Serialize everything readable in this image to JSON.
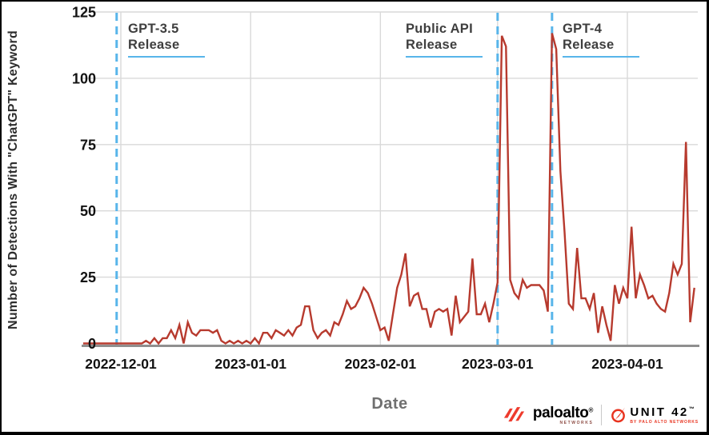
{
  "chart_data": {
    "type": "line",
    "title": "",
    "xlabel": "Date",
    "ylabel": "Number of Detections With \"ChatGPT\" Keyword",
    "x_tick_labels": [
      "2022-12-01",
      "2023-01-01",
      "2023-02-01",
      "2023-03-01",
      "2023-04-01"
    ],
    "y_tick_labels": [
      0,
      25,
      50,
      75,
      100,
      125
    ],
    "ylim": [
      0,
      125
    ],
    "grid": true,
    "legend": "none",
    "line_color": "#b73a2e",
    "grid_color": "#d9d9d9",
    "event_line_color": "#58b5ea",
    "events": [
      {
        "date": "2022-11-30",
        "label1": "GPT-3.5",
        "label2": "Release"
      },
      {
        "date": "2023-03-01",
        "label1": "Public API",
        "label2": "Release"
      },
      {
        "date": "2023-03-14",
        "label1": "GPT-4",
        "label2": "Release"
      }
    ],
    "series": [
      {
        "name": "Detections with ChatGPT keyword",
        "frequency": "daily",
        "start_date": "2022-11-22",
        "values": [
          0,
          0,
          0,
          0,
          0,
          0,
          0,
          0,
          0,
          0,
          0,
          0,
          0,
          0,
          0,
          1,
          0,
          2,
          0,
          2,
          2,
          5,
          2,
          7,
          0,
          8,
          4,
          3,
          5,
          5,
          5,
          4,
          5,
          1,
          0,
          1,
          0,
          1,
          0,
          1,
          0,
          2,
          0,
          4,
          4,
          2,
          5,
          4,
          3,
          5,
          3,
          6,
          7,
          14,
          14,
          5,
          2,
          4,
          5,
          3,
          8,
          7,
          11,
          16,
          13,
          14,
          17,
          21,
          19,
          15,
          10,
          5,
          6,
          1,
          11,
          21,
          26,
          34,
          14,
          18,
          19,
          13,
          13,
          6,
          12,
          13,
          12,
          13,
          3,
          18,
          8,
          10,
          12,
          32,
          11,
          11,
          15,
          8,
          15,
          23,
          116,
          112,
          24,
          19,
          17,
          24,
          21,
          22,
          22,
          22,
          20,
          12,
          117,
          111,
          65,
          42,
          15,
          13,
          36,
          17,
          17,
          13,
          19,
          4,
          14,
          7,
          1,
          22,
          15,
          21,
          17,
          44,
          17,
          26,
          22,
          17,
          18,
          15,
          13,
          12,
          19,
          30,
          26,
          30,
          76,
          8,
          21
        ]
      }
    ]
  },
  "footer": {
    "brand1": "paloalto",
    "brand1_reg": "®",
    "brand1_sub": "NETWORKS",
    "brand2": "UNIT 42",
    "brand2_tm": "™",
    "brand2_sub": "BY PALO ALTO NETWORKS",
    "brand_red": "#ee3b2d"
  }
}
